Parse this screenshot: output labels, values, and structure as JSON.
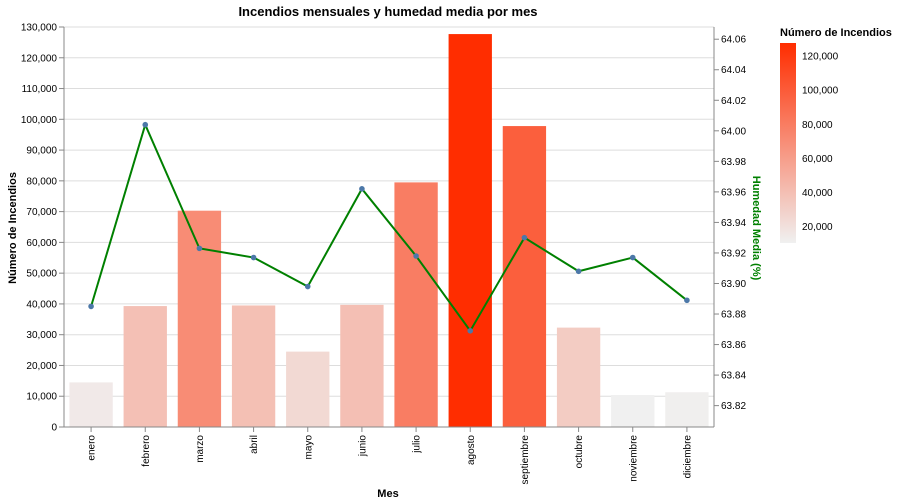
{
  "chart_data": {
    "type": "bar",
    "title": "Incendios mensuales y humedad media por mes",
    "xlabel": "Mes",
    "ylabel": "Número de Incendios",
    "y2label": "Humedad Media (%)",
    "categories": [
      "enero",
      "febrero",
      "marzo",
      "abril",
      "mayo",
      "junio",
      "julio",
      "agosto",
      "septiembre",
      "octubre",
      "noviembre",
      "diciembre"
    ],
    "series": [
      {
        "name": "Número de Incendios",
        "type": "bar",
        "axis": "left",
        "values": [
          14500,
          39300,
          70300,
          39500,
          24500,
          39700,
          79500,
          127700,
          97800,
          32300,
          10400,
          11300
        ]
      },
      {
        "name": "Humedad Media (%)",
        "type": "line",
        "axis": "right",
        "values": [
          63.885,
          64.004,
          63.923,
          63.917,
          63.898,
          63.962,
          63.918,
          63.869,
          63.93,
          63.908,
          63.917,
          63.889
        ]
      }
    ],
    "ylim": [
      0,
      130000
    ],
    "y_ticks": [
      0,
      10000,
      20000,
      30000,
      40000,
      50000,
      60000,
      70000,
      80000,
      90000,
      100000,
      110000,
      120000,
      130000
    ],
    "y_tick_labels": [
      "0",
      "10,000",
      "20,000",
      "30,000",
      "40,000",
      "50,000",
      "60,000",
      "70,000",
      "80,000",
      "90,000",
      "100,000",
      "110,000",
      "120,000",
      "130,000"
    ],
    "y2lim": [
      63.806,
      64.068
    ],
    "y2_ticks": [
      63.82,
      63.84,
      63.86,
      63.88,
      63.9,
      63.92,
      63.94,
      63.96,
      63.98,
      64.0,
      64.02,
      64.04,
      64.06
    ],
    "y2_tick_labels": [
      "63.82",
      "63.84",
      "63.86",
      "63.88",
      "63.90",
      "63.92",
      "63.94",
      "63.96",
      "63.98",
      "64.00",
      "64.02",
      "64.04",
      "64.06"
    ],
    "grid": true,
    "legend": {
      "title": "Número de Incendios",
      "placement": "right",
      "type": "gradient",
      "domain": [
        10400,
        127700
      ],
      "ticks": [
        20000,
        40000,
        60000,
        80000,
        100000,
        120000
      ],
      "tick_labels": [
        "20,000",
        "40,000",
        "60,000",
        "80,000",
        "100,000",
        "120,000"
      ]
    },
    "colors": {
      "bar_low": "#f0f0f0",
      "bar_high": "#ff2d00",
      "line": "#008000",
      "point": "#4c78a8",
      "grid": "#dddddd",
      "axis": "#888888",
      "y2_title": "#008000"
    }
  }
}
